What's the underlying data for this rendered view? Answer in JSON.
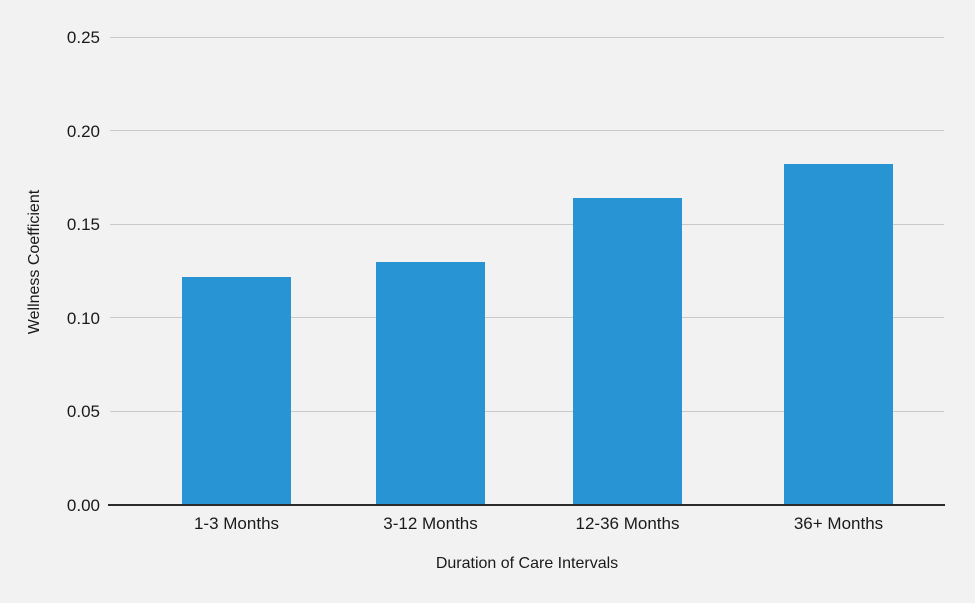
{
  "chart_data": {
    "type": "bar",
    "title": "",
    "categories": [
      "1-3 Months",
      "3-12 Months",
      "12-36 Months",
      "36+ Months"
    ],
    "values": [
      0.122,
      0.13,
      0.164,
      0.182
    ],
    "xlabel": "Duration of Care Intervals",
    "ylabel": "Wellness Coefficient",
    "ylim": [
      0,
      0.25
    ],
    "yticks": [
      0.0,
      0.05,
      0.1,
      0.15,
      0.2,
      0.25
    ],
    "ytick_labels": [
      "0.00",
      "0.05",
      "0.10",
      "0.15",
      "0.20",
      "0.25"
    ],
    "grid": "horizontal",
    "legend": "none",
    "colors": {
      "bar": "#2894d3",
      "background": "#f2f2f2",
      "gridline": "#c9c9c9",
      "axis_line": "#2b2b2b",
      "text": "#1a1a1a"
    }
  }
}
